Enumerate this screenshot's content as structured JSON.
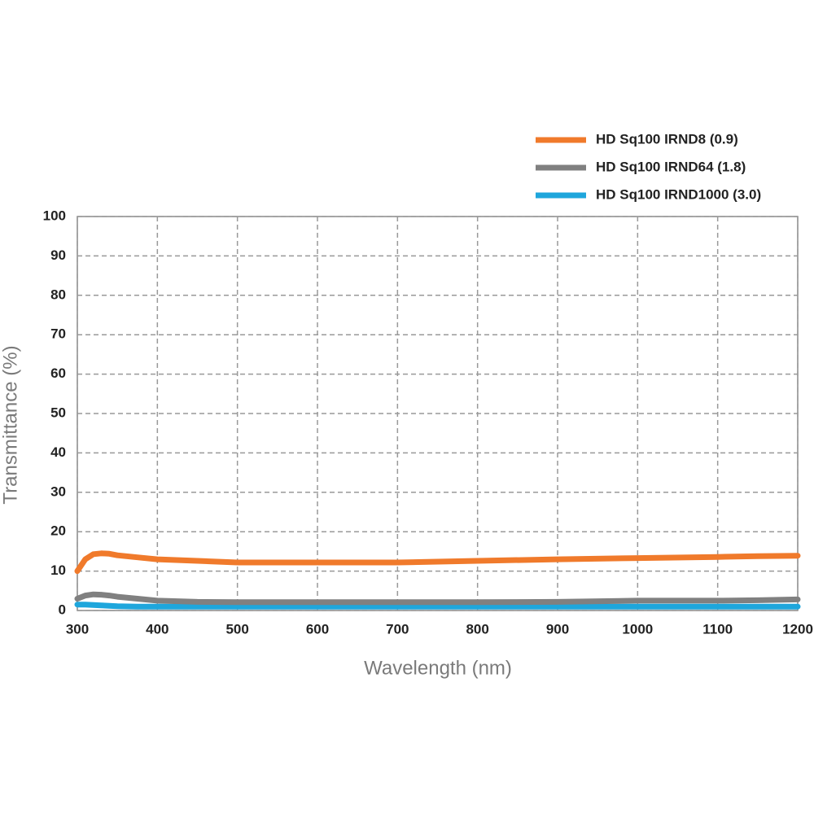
{
  "chart_data": {
    "type": "line",
    "xlabel": "Wavelength (nm)",
    "ylabel": "Transmittance (%)",
    "x": [
      300,
      310,
      320,
      330,
      340,
      350,
      375,
      400,
      450,
      500,
      600,
      700,
      800,
      900,
      1000,
      1100,
      1150,
      1200
    ],
    "series": [
      {
        "name": "HD Sq100 IRND8 (0.9)",
        "color": "#f07a2b",
        "values": [
          10,
          13,
          14.3,
          14.5,
          14.4,
          14,
          13.5,
          13,
          12.6,
          12.2,
          12.2,
          12.2,
          12.6,
          13,
          13.3,
          13.6,
          13.8,
          13.9
        ]
      },
      {
        "name": "HD Sq100 IRND64 (1.8)",
        "color": "#808080",
        "values": [
          3,
          3.8,
          4.1,
          4,
          3.8,
          3.5,
          3,
          2.5,
          2.2,
          2.1,
          2.1,
          2.1,
          2.1,
          2.2,
          2.5,
          2.5,
          2.6,
          2.8
        ]
      },
      {
        "name": "HD Sq100 IRND1000 (3.0)",
        "color": "#1ea6dc",
        "values": [
          1.5,
          1.5,
          1.4,
          1.3,
          1.2,
          1.1,
          1,
          1,
          1,
          1,
          1,
          1,
          1,
          1,
          1,
          1,
          1,
          1
        ]
      }
    ],
    "xlim": [
      300,
      1200
    ],
    "xticks": [
      300,
      400,
      500,
      600,
      700,
      800,
      900,
      1000,
      1100,
      1200
    ],
    "ylim": [
      0,
      100
    ],
    "yticks": [
      0,
      10,
      20,
      30,
      40,
      50,
      60,
      70,
      80,
      90,
      100
    ],
    "grid": true
  }
}
